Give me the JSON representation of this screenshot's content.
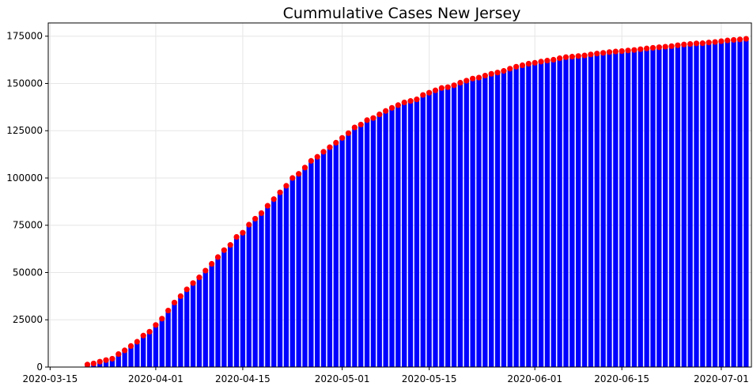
{
  "chart_data": {
    "type": "bar",
    "title": "Cummulative Cases New Jersey",
    "xlabel": "",
    "ylabel": "",
    "x_start": "2020-03-21",
    "x": [
      "2020-03-21",
      "2020-03-22",
      "2020-03-23",
      "2020-03-24",
      "2020-03-25",
      "2020-03-26",
      "2020-03-27",
      "2020-03-28",
      "2020-03-29",
      "2020-03-30",
      "2020-03-31",
      "2020-04-01",
      "2020-04-02",
      "2020-04-03",
      "2020-04-04",
      "2020-04-05",
      "2020-04-06",
      "2020-04-07",
      "2020-04-08",
      "2020-04-09",
      "2020-04-10",
      "2020-04-11",
      "2020-04-12",
      "2020-04-13",
      "2020-04-14",
      "2020-04-15",
      "2020-04-16",
      "2020-04-17",
      "2020-04-18",
      "2020-04-19",
      "2020-04-20",
      "2020-04-21",
      "2020-04-22",
      "2020-04-23",
      "2020-04-24",
      "2020-04-25",
      "2020-04-26",
      "2020-04-27",
      "2020-04-28",
      "2020-04-29",
      "2020-04-30",
      "2020-05-01",
      "2020-05-02",
      "2020-05-03",
      "2020-05-04",
      "2020-05-05",
      "2020-05-06",
      "2020-05-07",
      "2020-05-08",
      "2020-05-09",
      "2020-05-10",
      "2020-05-11",
      "2020-05-12",
      "2020-05-13",
      "2020-05-14",
      "2020-05-15",
      "2020-05-16",
      "2020-05-17",
      "2020-05-18",
      "2020-05-19",
      "2020-05-20",
      "2020-05-21",
      "2020-05-22",
      "2020-05-23",
      "2020-05-24",
      "2020-05-25",
      "2020-05-26",
      "2020-05-27",
      "2020-05-28",
      "2020-05-29",
      "2020-05-30",
      "2020-05-31",
      "2020-06-01",
      "2020-06-02",
      "2020-06-03",
      "2020-06-04",
      "2020-06-05",
      "2020-06-06",
      "2020-06-07",
      "2020-06-08",
      "2020-06-09",
      "2020-06-10",
      "2020-06-11",
      "2020-06-12",
      "2020-06-13",
      "2020-06-14",
      "2020-06-15",
      "2020-06-16",
      "2020-06-17",
      "2020-06-18",
      "2020-06-19",
      "2020-06-20",
      "2020-06-21",
      "2020-06-22",
      "2020-06-23",
      "2020-06-24",
      "2020-06-25",
      "2020-06-26",
      "2020-06-27",
      "2020-06-28",
      "2020-06-29",
      "2020-06-30",
      "2020-07-01",
      "2020-07-02",
      "2020-07-03",
      "2020-07-04",
      "2020-07-05"
    ],
    "values": [
      1327,
      1914,
      2844,
      3675,
      4402,
      6876,
      8825,
      11124,
      13386,
      16636,
      18696,
      22255,
      25590,
      29895,
      34124,
      37505,
      41090,
      44416,
      47437,
      51027,
      54588,
      58151,
      61850,
      64584,
      68824,
      71030,
      75317,
      78467,
      81420,
      85301,
      88806,
      92387,
      95865,
      99989,
      102196,
      105498,
      109038,
      111188,
      113856,
      116264,
      118652,
      121190,
      123717,
      126744,
      128269,
      130593,
      131705,
      133635,
      135454,
      137085,
      138532,
      139945,
      140743,
      141560,
      143905,
      145089,
      146334,
      147593,
      148039,
      149013,
      150399,
      151472,
      152579,
      153104,
      154154,
      155092,
      155764,
      156628,
      157815,
      158844,
      159608,
      160445,
      160918,
      161545,
      162068,
      162530,
      163336,
      163893,
      164164,
      164497,
      164796,
      165346,
      165816,
      166164,
      166605,
      166881,
      167103,
      167426,
      167703,
      168107,
      168496,
      168834,
      169142,
      169415,
      169734,
      170196,
      170584,
      170873,
      171182,
      171272,
      171667,
      171928,
      172356,
      172742,
      173033,
      173300,
      173611
    ],
    "ylim": [
      0,
      182000
    ],
    "yticks": [
      0,
      25000,
      50000,
      75000,
      100000,
      125000,
      150000,
      175000
    ],
    "xticks": [
      "2020-03-15",
      "2020-04-01",
      "2020-04-15",
      "2020-05-01",
      "2020-05-15",
      "2020-06-01",
      "2020-06-15",
      "2020-07-01"
    ],
    "grid": true,
    "bar_color": "#0000ff",
    "marker_color": "#ff0000"
  }
}
